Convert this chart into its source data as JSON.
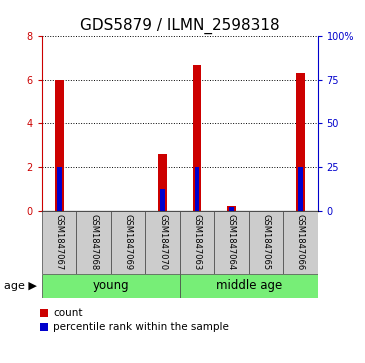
{
  "title": "GDS5879 / ILMN_2598318",
  "samples": [
    "GSM1847067",
    "GSM1847068",
    "GSM1847069",
    "GSM1847070",
    "GSM1847063",
    "GSM1847064",
    "GSM1847065",
    "GSM1847066"
  ],
  "red_values": [
    6.0,
    0.0,
    0.0,
    2.6,
    6.7,
    0.2,
    0.0,
    6.3
  ],
  "blue_values_pct": [
    25.0,
    0.0,
    0.0,
    12.5,
    25.0,
    2.0,
    0.0,
    25.0
  ],
  "groups": [
    {
      "label": "young",
      "indices": [
        0,
        1,
        2,
        3
      ]
    },
    {
      "label": "middle age",
      "indices": [
        4,
        5,
        6,
        7
      ]
    }
  ],
  "ylim_left": [
    0,
    8
  ],
  "ylim_right": [
    0,
    100
  ],
  "yticks_left": [
    0,
    2,
    4,
    6,
    8
  ],
  "yticks_right": [
    0,
    25,
    50,
    75,
    100
  ],
  "ytick_labels_right": [
    "0",
    "25",
    "50",
    "75",
    "100%"
  ],
  "left_axis_color": "#cc0000",
  "right_axis_color": "#0000cc",
  "bar_color_red": "#cc0000",
  "bar_color_blue": "#0000cc",
  "group_bg_color": "#77ee77",
  "sample_box_color": "#cccccc",
  "age_label": "age",
  "legend_count": "count",
  "legend_percentile": "percentile rank within the sample",
  "title_fontsize": 11,
  "tick_fontsize": 7,
  "sample_fontsize": 6,
  "label_fontsize": 8.5,
  "legend_fontsize": 7.5
}
